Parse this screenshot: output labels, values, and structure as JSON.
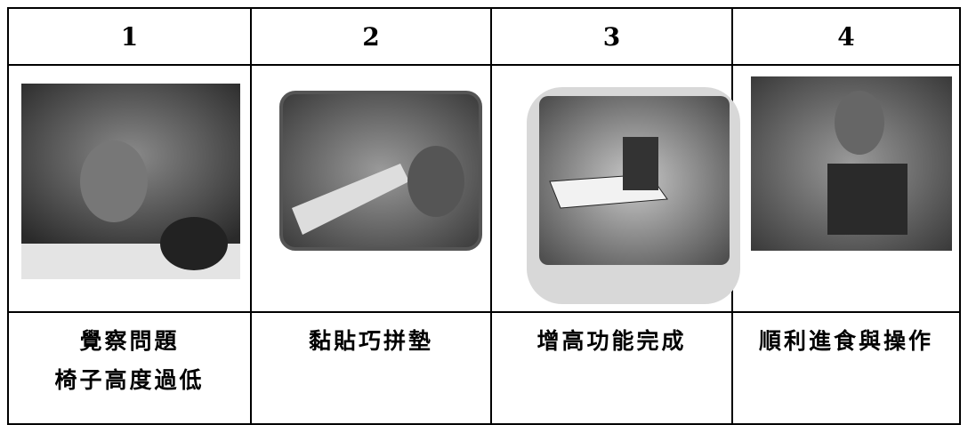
{
  "table": {
    "header": [
      "1",
      "2",
      "3",
      "4"
    ],
    "captions": [
      [
        "覺察問題",
        "椅子高度過低"
      ],
      [
        "黏貼巧拼墊"
      ],
      [
        "增高功能完成"
      ],
      [
        "順利進食與操作"
      ]
    ]
  }
}
